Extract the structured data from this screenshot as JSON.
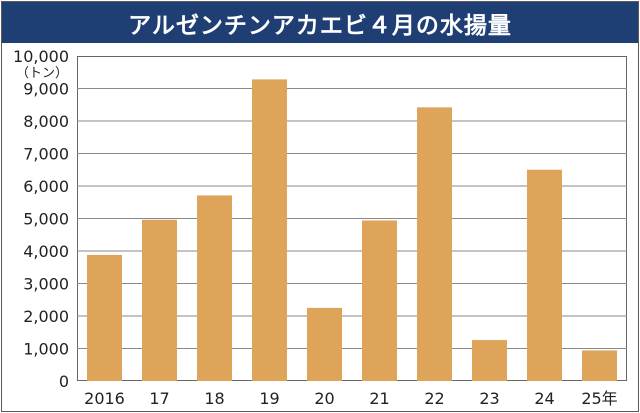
{
  "chart_data": {
    "type": "bar",
    "title": "アルゼンチンアカエビ４月の水揚量",
    "unit": "（トン）",
    "categories": [
      "2016",
      "17",
      "18",
      "19",
      "20",
      "21",
      "22",
      "23",
      "24",
      "25年"
    ],
    "values": [
      3880,
      4960,
      5710,
      9280,
      2250,
      4940,
      8420,
      1260,
      6500,
      940
    ],
    "ylim": [
      0,
      10000
    ],
    "yticks": [
      0,
      1000,
      2000,
      3000,
      4000,
      5000,
      6000,
      7000,
      8000,
      9000,
      10000
    ],
    "ytick_labels": [
      "0",
      "1,000",
      "2,000",
      "3,000",
      "4,000",
      "5,000",
      "6,000",
      "7,000",
      "8,000",
      "9,000",
      "10,000"
    ],
    "grid": true,
    "bar_color": "#dda45a"
  }
}
